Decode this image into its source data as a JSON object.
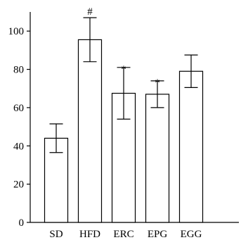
{
  "chart_data": {
    "type": "bar",
    "title": "",
    "xlabel": "",
    "ylabel": "",
    "categories": [
      "SD",
      "HFD",
      "ERC",
      "EPG",
      "EGG"
    ],
    "values": [
      44,
      95.5,
      67.5,
      67,
      79
    ],
    "errors": [
      7.5,
      11.5,
      13.5,
      7,
      8.5
    ],
    "annotations": [
      "",
      "#",
      "*",
      "*",
      ""
    ],
    "ylim": [
      0,
      110
    ],
    "yticks": [
      0,
      20,
      40,
      60,
      80,
      100
    ],
    "grid": false,
    "colors": {
      "bar_fill": "#ffffff",
      "bar_stroke": "#000000"
    }
  }
}
